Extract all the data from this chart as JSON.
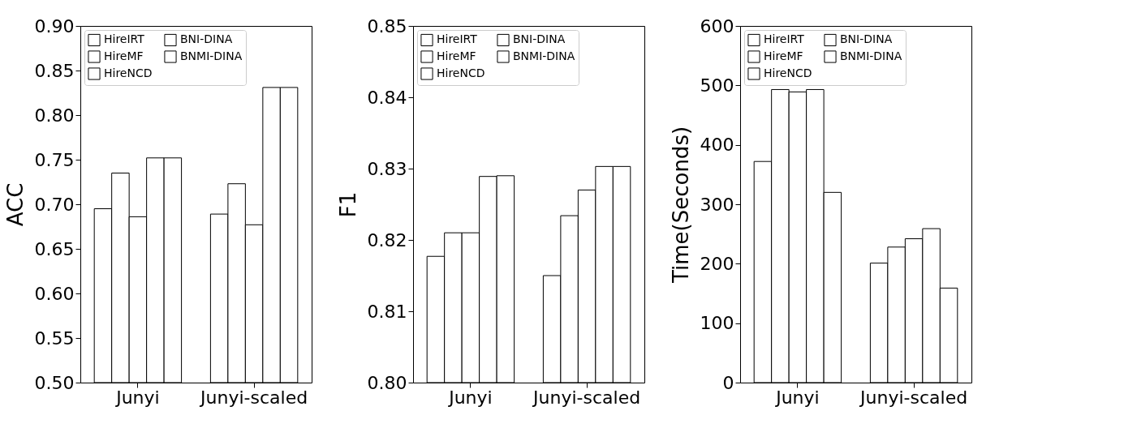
{
  "chart_data": [
    {
      "type": "bar",
      "ylabel": "ACC",
      "categories": [
        "Junyi",
        "Junyi-scaled"
      ],
      "ylim": [
        0.5,
        0.9
      ],
      "yticks": [
        {
          "value": 0.5,
          "label": "0.50"
        },
        {
          "value": 0.55,
          "label": "0.55"
        },
        {
          "value": 0.6,
          "label": "0.60"
        },
        {
          "value": 0.65,
          "label": "0.65"
        },
        {
          "value": 0.7,
          "label": "0.70"
        },
        {
          "value": 0.75,
          "label": "0.75"
        },
        {
          "value": 0.8,
          "label": "0.80"
        },
        {
          "value": 0.85,
          "label": "0.85"
        },
        {
          "value": 0.9,
          "label": "0.90"
        }
      ],
      "grid": false,
      "legend": "top left",
      "series": [
        {
          "name": "HireIRT",
          "color": "#ffffff",
          "values": [
            0.695,
            0.689
          ]
        },
        {
          "name": "HireMF",
          "color": "#ffffff",
          "values": [
            0.735,
            0.723
          ]
        },
        {
          "name": "HireNCD",
          "color": "#ffffff",
          "values": [
            0.686,
            0.677
          ]
        },
        {
          "name": "BNI-DINA",
          "color": "#ffffff",
          "values": [
            0.752,
            0.831
          ]
        },
        {
          "name": "BNMI-DINA",
          "color": "#ffffff",
          "values": [
            0.752,
            0.831
          ]
        }
      ]
    },
    {
      "type": "bar",
      "ylabel": "F1",
      "categories": [
        "Junyi",
        "Junyi-scaled"
      ],
      "ylim": [
        0.8,
        0.85
      ],
      "yticks": [
        {
          "value": 0.8,
          "label": "0.80"
        },
        0.81,
        0.82,
        0.83,
        0.84,
        0.85
      ],
      "grid": false,
      "legend": "top left",
      "series": [
        {
          "name": "HireIRT",
          "color": "#ffffff",
          "values": [
            0.8177,
            0.815
          ]
        },
        {
          "name": "HireMF",
          "color": "#ffffff",
          "values": [
            0.821,
            0.8234
          ]
        },
        {
          "name": "HireNCD",
          "color": "#ffffff",
          "values": [
            0.821,
            0.827
          ]
        },
        {
          "name": "BNI-DINA",
          "color": "#ffffff",
          "values": [
            0.8289,
            0.8303
          ]
        },
        {
          "name": "BNMI-DINA",
          "color": "#ffffff",
          "values": [
            0.829,
            0.8303
          ]
        }
      ]
    },
    {
      "type": "bar",
      "ylabel": "Time(Seconds)",
      "categories": [
        "Junyi",
        "Junyi-scaled"
      ],
      "ylim": [
        0,
        600
      ],
      "yticks": [
        0,
        100,
        200,
        300,
        400,
        500,
        600
      ],
      "grid": false,
      "legend": "top left",
      "series": [
        {
          "name": "HireIRT",
          "color": "#ffffff",
          "values": [
            372,
            201
          ]
        },
        {
          "name": "HireMF",
          "color": "#ffffff",
          "values": [
            493,
            228
          ]
        },
        {
          "name": "HireNCD",
          "color": "#ffffff",
          "values": [
            489,
            242
          ]
        },
        {
          "name": "BNI-DINA",
          "color": "#ffffff",
          "values": [
            493,
            259
          ]
        },
        {
          "name": "BNMI-DINA",
          "color": "#ffffff",
          "values": [
            320,
            159
          ]
        }
      ]
    }
  ]
}
